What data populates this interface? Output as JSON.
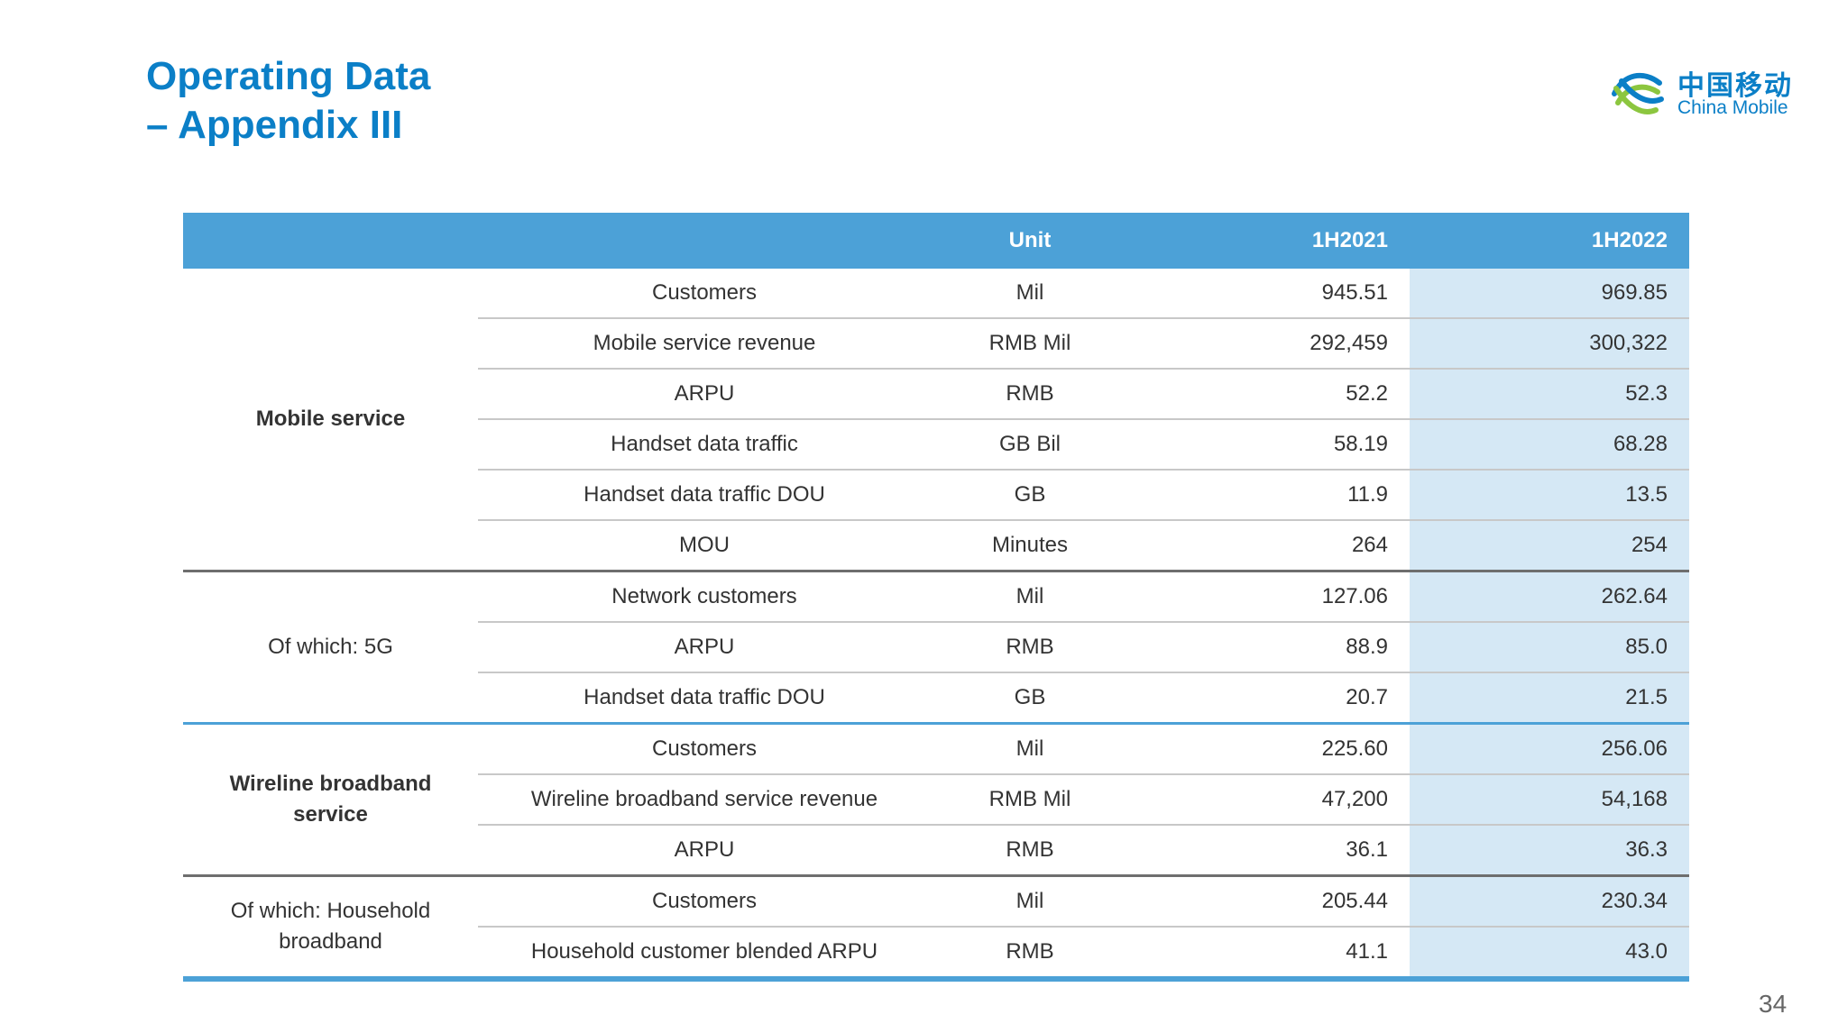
{
  "title_line1": "Operating Data",
  "title_line2": "– Appendix III",
  "logo": {
    "cn": "中国移动",
    "en": "China Mobile",
    "mark_colors": [
      "#8cc63f",
      "#0b7fc7"
    ]
  },
  "table": {
    "headers": {
      "group": "",
      "metric": "",
      "unit": "Unit",
      "y1": "1H2021",
      "y2": "1H2022"
    },
    "sections": [
      {
        "label": "Mobile service",
        "rows": [
          {
            "metric": "Customers",
            "unit": "Mil",
            "y1": "945.51",
            "y2": "969.85"
          },
          {
            "metric": "Mobile service revenue",
            "unit": "RMB Mil",
            "y1": "292,459",
            "y2": "300,322"
          },
          {
            "metric": "ARPU",
            "unit": "RMB",
            "y1": "52.2",
            "y2": "52.3"
          },
          {
            "metric": "Handset data traffic",
            "unit": "GB Bil",
            "y1": "58.19",
            "y2": "68.28"
          },
          {
            "metric": "Handset data traffic DOU",
            "unit": "GB",
            "y1": "11.9",
            "y2": "13.5"
          },
          {
            "metric": "MOU",
            "unit": "Minutes",
            "y1": "264",
            "y2": "254"
          }
        ]
      },
      {
        "label": "Of which: 5G",
        "rows": [
          {
            "metric": "Network customers",
            "unit": "Mil",
            "y1": "127.06",
            "y2": "262.64"
          },
          {
            "metric": "ARPU",
            "unit": "RMB",
            "y1": "88.9",
            "y2": "85.0"
          },
          {
            "metric": "Handset data traffic DOU",
            "unit": "GB",
            "y1": "20.7",
            "y2": "21.5"
          }
        ]
      },
      {
        "label": "Wireline broadband service",
        "rows": [
          {
            "metric": "Customers",
            "unit": "Mil",
            "y1": "225.60",
            "y2": "256.06"
          },
          {
            "metric": "Wireline broadband service revenue",
            "unit": "RMB Mil",
            "y1": "47,200",
            "y2": "54,168"
          },
          {
            "metric": "ARPU",
            "unit": "RMB",
            "y1": "36.1",
            "y2": "36.3"
          }
        ]
      },
      {
        "label": "Of which: Household broadband",
        "rows": [
          {
            "metric": "Customers",
            "unit": "Mil",
            "y1": "205.44",
            "y2": "230.34"
          },
          {
            "metric": "Household customer blended ARPU",
            "unit": "RMB",
            "y1": "41.1",
            "y2": "43.0"
          }
        ]
      }
    ]
  },
  "page_number": "34"
}
